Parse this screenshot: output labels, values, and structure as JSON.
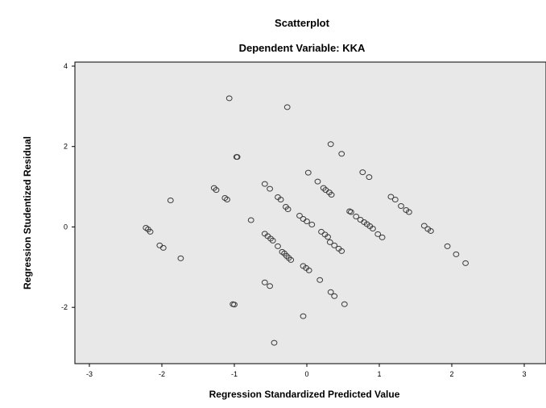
{
  "chart_data": {
    "type": "scatter",
    "title": "Scatterplot",
    "subtitle": "Dependent Variable: KKA",
    "xlabel": "Regression Standardized Predicted Value",
    "ylabel": "Regression Studentized Residual",
    "xlim": [
      -3.2,
      3.3
    ],
    "ylim": [
      -3.4,
      4.1
    ],
    "xticks": [
      -3,
      -2,
      -1,
      0,
      1,
      2,
      3
    ],
    "yticks": [
      -2,
      0,
      2,
      4
    ],
    "grid": false,
    "background_color": "#e8e8e8",
    "marker_color": "#3a3a3a",
    "points": [
      [
        -1.07,
        3.2
      ],
      [
        -0.27,
        2.98
      ],
      [
        -0.97,
        1.74
      ],
      [
        -0.96,
        1.74
      ],
      [
        -2.22,
        -0.02
      ],
      [
        -2.19,
        -0.06
      ],
      [
        -2.16,
        -0.12
      ],
      [
        -2.03,
        -0.46
      ],
      [
        -1.98,
        -0.52
      ],
      [
        -1.88,
        0.66
      ],
      [
        -1.74,
        -0.78
      ],
      [
        -1.28,
        0.97
      ],
      [
        -1.25,
        0.92
      ],
      [
        -1.13,
        0.72
      ],
      [
        -1.1,
        0.68
      ],
      [
        -1.02,
        -1.92
      ],
      [
        -1.0,
        -1.93
      ],
      [
        -0.77,
        0.17
      ],
      [
        -0.58,
        1.07
      ],
      [
        -0.51,
        0.95
      ],
      [
        -0.58,
        -0.17
      ],
      [
        -0.54,
        -0.23
      ],
      [
        -0.5,
        -0.29
      ],
      [
        -0.47,
        -0.34
      ],
      [
        -0.58,
        -1.38
      ],
      [
        -0.51,
        -1.47
      ],
      [
        -0.45,
        -2.88
      ],
      [
        -0.4,
        0.74
      ],
      [
        -0.36,
        0.68
      ],
      [
        -0.29,
        0.5
      ],
      [
        -0.26,
        0.44
      ],
      [
        -0.4,
        -0.48
      ],
      [
        -0.34,
        -0.62
      ],
      [
        -0.31,
        -0.66
      ],
      [
        -0.28,
        -0.72
      ],
      [
        -0.25,
        -0.77
      ],
      [
        -0.22,
        -0.82
      ],
      [
        -0.1,
        0.28
      ],
      [
        -0.05,
        0.2
      ],
      [
        0.0,
        0.14
      ],
      [
        0.07,
        0.06
      ],
      [
        -0.05,
        -0.97
      ],
      [
        -0.01,
        -1.02
      ],
      [
        0.03,
        -1.08
      ],
      [
        -0.05,
        -2.22
      ],
      [
        0.02,
        1.35
      ],
      [
        0.15,
        1.13
      ],
      [
        0.2,
        -0.12
      ],
      [
        0.25,
        -0.19
      ],
      [
        0.29,
        -0.25
      ],
      [
        0.18,
        -1.32
      ],
      [
        0.23,
        0.97
      ],
      [
        0.26,
        0.92
      ],
      [
        0.31,
        0.86
      ],
      [
        0.34,
        0.8
      ],
      [
        0.33,
        2.06
      ],
      [
        0.48,
        1.82
      ],
      [
        0.32,
        -0.38
      ],
      [
        0.38,
        -0.46
      ],
      [
        0.44,
        -0.54
      ],
      [
        0.48,
        -0.6
      ],
      [
        0.33,
        -1.62
      ],
      [
        0.38,
        -1.72
      ],
      [
        0.52,
        -1.92
      ],
      [
        0.59,
        0.39
      ],
      [
        0.61,
        0.37
      ],
      [
        0.68,
        0.26
      ],
      [
        0.74,
        0.18
      ],
      [
        0.79,
        0.12
      ],
      [
        0.83,
        0.07
      ],
      [
        0.87,
        0.02
      ],
      [
        0.91,
        -0.04
      ],
      [
        0.98,
        -0.18
      ],
      [
        1.04,
        -0.26
      ],
      [
        0.77,
        1.36
      ],
      [
        0.86,
        1.24
      ],
      [
        1.16,
        0.75
      ],
      [
        1.22,
        0.68
      ],
      [
        1.3,
        0.52
      ],
      [
        1.37,
        0.42
      ],
      [
        1.41,
        0.37
      ],
      [
        1.62,
        0.03
      ],
      [
        1.67,
        -0.05
      ],
      [
        1.71,
        -0.1
      ],
      [
        1.94,
        -0.48
      ],
      [
        2.06,
        -0.68
      ],
      [
        2.19,
        -0.9
      ]
    ]
  }
}
